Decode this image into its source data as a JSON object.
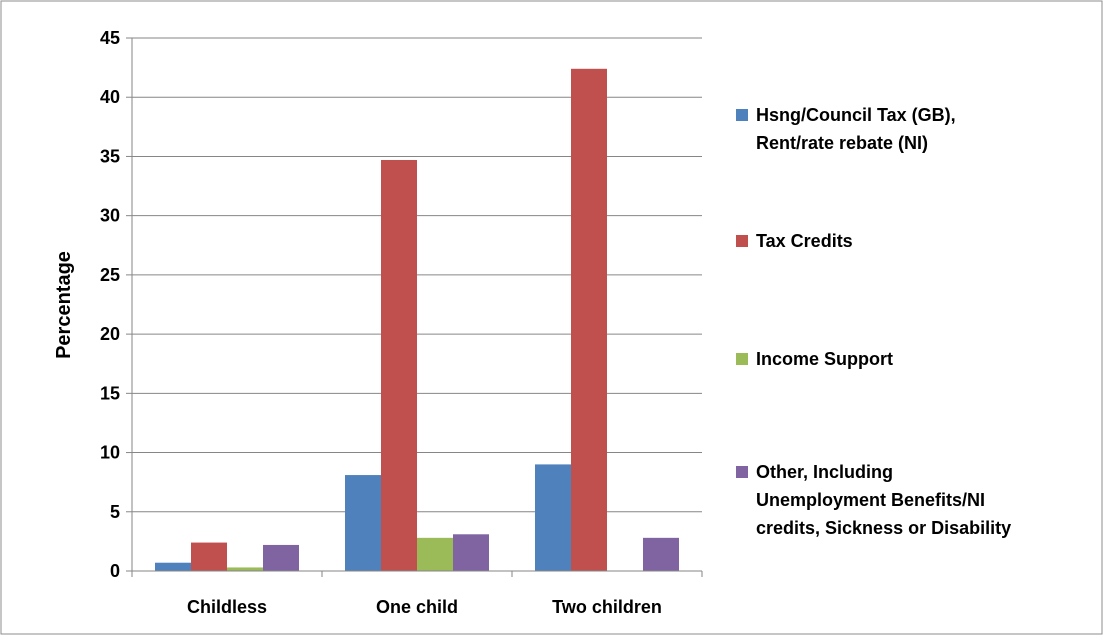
{
  "chart_data": {
    "type": "bar",
    "title": "",
    "xlabel": "",
    "ylabel": "Percentage",
    "ylim": [
      0,
      45
    ],
    "yticks": [
      0,
      5,
      10,
      15,
      20,
      25,
      30,
      35,
      40,
      45
    ],
    "grid": true,
    "legend_position": "right",
    "categories": [
      "Childless",
      "One child",
      "Two children"
    ],
    "series": [
      {
        "name": "Hsng/Council Tax (GB), Rent/rate rebate (NI)",
        "legend_lines": [
          "Hsng/Council Tax (GB),",
          "Rent/rate rebate (NI)"
        ],
        "color": "#4F81BD",
        "values": [
          0.7,
          8.1,
          9.0
        ]
      },
      {
        "name": "Tax Credits",
        "legend_lines": [
          "Tax Credits"
        ],
        "color": "#C0504D",
        "values": [
          2.4,
          34.7,
          42.4
        ]
      },
      {
        "name": "Income Support",
        "legend_lines": [
          "Income Support"
        ],
        "color": "#9BBB59",
        "values": [
          0.3,
          2.8,
          0
        ]
      },
      {
        "name": "Other, Including Unemployment Benefits/NI credits, Sickness or Disability",
        "legend_lines": [
          "Other, Including",
          "Unemployment  Benefits/NI",
          "credits, Sickness or Disability"
        ],
        "color": "#8064A2",
        "values": [
          2.2,
          3.1,
          2.8
        ]
      }
    ]
  }
}
